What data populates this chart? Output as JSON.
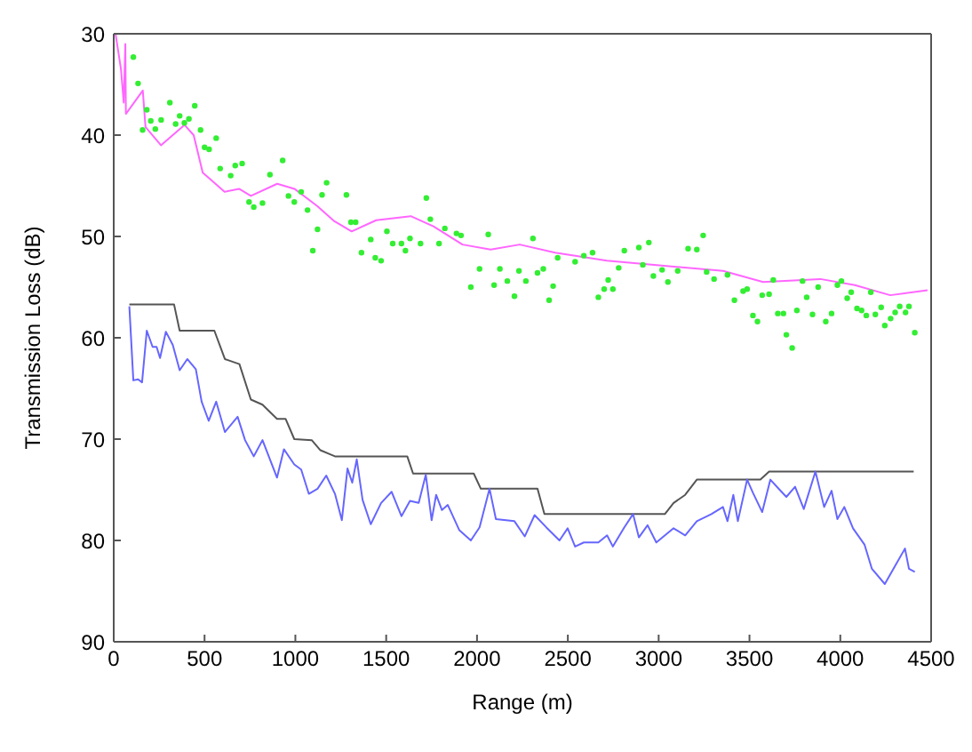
{
  "chart_data": {
    "type": "line",
    "xlabel": "Range (m)",
    "ylabel": "Transmission Loss (dB)",
    "xlim": [
      0,
      4500
    ],
    "xticks": [
      0,
      500,
      1000,
      1500,
      2000,
      2500,
      3000,
      3500,
      4000,
      4500
    ],
    "ylim": [
      90,
      30
    ],
    "yticks": [
      30,
      40,
      50,
      60,
      70,
      80,
      90
    ],
    "grid": false,
    "series": [
      {
        "type": "scatter",
        "color": "#33ee33",
        "x": [
          108,
          134,
          159,
          182,
          204,
          229,
          261,
          309,
          341,
          363,
          389,
          414,
          446,
          478,
          500,
          525,
          564,
          586,
          644,
          669,
          707,
          745,
          771,
          819,
          860,
          930,
          962,
          994,
          1032,
          1067,
          1096,
          1122,
          1147,
          1172,
          1281,
          1306,
          1332,
          1364,
          1415,
          1440,
          1472,
          1504,
          1536,
          1584,
          1606,
          1631,
          1689,
          1721,
          1743,
          1791,
          1823,
          1887,
          1912,
          1966,
          2014,
          2062,
          2094,
          2126,
          2167,
          2206,
          2231,
          2269,
          2308,
          2333,
          2365,
          2397,
          2419,
          2444,
          2540,
          2588,
          2636,
          2668,
          2700,
          2722,
          2748,
          2780,
          2811,
          2891,
          2913,
          2946,
          2971,
          3019,
          3051,
          3105,
          3162,
          3210,
          3245,
          3264,
          3305,
          3379,
          3417,
          3465,
          3487,
          3519,
          3544,
          3570,
          3608,
          3631,
          3656,
          3687,
          3703,
          3735,
          3761,
          3792,
          3815,
          3847,
          3878,
          3920,
          3952,
          3984,
          4006,
          4038,
          4060,
          4092,
          4117,
          4143,
          4168,
          4193,
          4225,
          4245,
          4277,
          4302,
          4327,
          4359,
          4378,
          4410
        ],
        "values": [
          32.3,
          34.9,
          39.5,
          37.5,
          38.6,
          39.4,
          38.5,
          36.8,
          38.9,
          38.1,
          38.8,
          38.4,
          37.1,
          39.5,
          41.2,
          41.4,
          40.3,
          43.3,
          44.0,
          43.0,
          42.8,
          46.6,
          47.1,
          46.7,
          43.9,
          42.5,
          46.0,
          46.6,
          45.6,
          47.4,
          51.4,
          49.3,
          45.9,
          44.7,
          45.9,
          48.6,
          48.6,
          51.6,
          50.3,
          52.1,
          52.4,
          49.5,
          50.7,
          50.7,
          51.4,
          50.2,
          50.7,
          46.2,
          48.3,
          50.7,
          49.2,
          49.7,
          49.9,
          55.0,
          53.2,
          49.8,
          54.8,
          53.2,
          54.4,
          55.9,
          53.4,
          54.4,
          50.2,
          53.6,
          53.2,
          56.3,
          54.9,
          52.1,
          52.5,
          51.9,
          51.6,
          56.0,
          55.2,
          54.3,
          55.2,
          53.1,
          51.4,
          51.1,
          52.8,
          50.6,
          53.9,
          53.3,
          54.5,
          53.4,
          51.2,
          51.3,
          49.9,
          53.5,
          54.2,
          53.8,
          56.3,
          55.4,
          55.2,
          57.8,
          58.4,
          55.8,
          55.7,
          54.3,
          57.6,
          57.6,
          59.7,
          61.0,
          57.3,
          54.4,
          56.0,
          57.7,
          55.0,
          58.4,
          57.6,
          54.8,
          54.4,
          56.1,
          55.5,
          57.1,
          57.3,
          57.8,
          55.5,
          57.7,
          57.0,
          58.8,
          58.1,
          57.5,
          56.9,
          57.5,
          56.9,
          59.5
        ]
      },
      {
        "color": "#ff66ff",
        "x": [
          10,
          40,
          55,
          64,
          67,
          160,
          175,
          260,
          325,
          390,
          440,
          490,
          535,
          610,
          690,
          755,
          900,
          995,
          1120,
          1215,
          1310,
          1445,
          1635,
          1760,
          1920,
          2075,
          2235,
          2430,
          2715,
          3030,
          3355,
          3575,
          3890,
          4080,
          4275,
          4480
        ],
        "values": [
          30,
          33.5,
          36.8,
          31,
          37.9,
          35.6,
          39.2,
          41,
          40,
          39,
          40,
          43.7,
          44.4,
          45.6,
          45.3,
          46,
          44.8,
          45.3,
          47,
          48.5,
          49.5,
          48.4,
          48,
          49,
          50.8,
          51.3,
          50.8,
          51.6,
          52.4,
          52.9,
          53.4,
          54.5,
          54.2,
          54.8,
          55.8,
          55.3
        ]
      },
      {
        "color": "#555555",
        "x": [
          86,
          332,
          363,
          554,
          612,
          692,
          755,
          819,
          899,
          946,
          994,
          1090,
          1138,
          1218,
          1616,
          1648,
          1982,
          2021,
          2333,
          2371,
          3034,
          3082,
          3146,
          3210,
          3560,
          3608,
          4404
        ],
        "values": [
          56.7,
          56.7,
          59.3,
          59.3,
          62.1,
          62.6,
          66.1,
          66.6,
          68.0,
          68.0,
          70.0,
          70.1,
          71.1,
          71.7,
          71.7,
          73.4,
          73.4,
          74.9,
          74.9,
          77.4,
          77.4,
          76.3,
          75.5,
          74.0,
          74.0,
          73.2,
          73.2
        ]
      },
      {
        "color": "#6666ff",
        "x": [
          86,
          108,
          134,
          156,
          182,
          214,
          236,
          255,
          287,
          325,
          363,
          405,
          452,
          484,
          523,
          564,
          612,
          682,
          723,
          771,
          819,
          899,
          937,
          994,
          1032,
          1074,
          1122,
          1170,
          1218,
          1256,
          1287,
          1313,
          1338,
          1370,
          1415,
          1472,
          1530,
          1584,
          1631,
          1679,
          1718,
          1750,
          1775,
          1807,
          1839,
          1903,
          1966,
          2014,
          2069,
          2104,
          2206,
          2263,
          2317,
          2381,
          2454,
          2499,
          2540,
          2588,
          2668,
          2716,
          2748,
          2811,
          2859,
          2891,
          2939,
          2987,
          3082,
          3146,
          3210,
          3290,
          3354,
          3379,
          3411,
          3436,
          3487,
          3519,
          3570,
          3615,
          3666,
          3703,
          3751,
          3799,
          3863,
          3911,
          3952,
          3984,
          4022,
          4070,
          4133,
          4174,
          4245,
          4302,
          4356,
          4378,
          4410
        ],
        "values": [
          56.9,
          64.2,
          64.1,
          64.4,
          59.3,
          60.9,
          60.9,
          62.0,
          59.4,
          60.7,
          63.2,
          62.1,
          63.1,
          66.3,
          68.2,
          66.3,
          69.3,
          67.8,
          70.1,
          71.7,
          70.1,
          73.8,
          71.0,
          72.5,
          73.0,
          75.4,
          74.9,
          73.6,
          75.4,
          78.0,
          72.9,
          74.3,
          72.0,
          76.0,
          78.4,
          76.3,
          75.2,
          77.6,
          76.1,
          76.3,
          73.5,
          78.0,
          75.5,
          77.0,
          76.5,
          79.0,
          80.0,
          78.7,
          74.9,
          77.9,
          78.1,
          79.6,
          77.5,
          78.7,
          80.0,
          78.8,
          80.6,
          80.2,
          80.2,
          79.5,
          80.6,
          78.7,
          77.4,
          79.7,
          78.5,
          80.2,
          78.8,
          79.5,
          78.1,
          77.4,
          76.7,
          78.1,
          75.5,
          78.1,
          74.0,
          75.3,
          77.2,
          74.0,
          75.0,
          75.7,
          74.7,
          76.9,
          73.2,
          76.7,
          75.1,
          77.9,
          76.7,
          78.8,
          80.4,
          82.8,
          84.3,
          82.5,
          80.8,
          82.8,
          83.1
        ]
      }
    ]
  }
}
